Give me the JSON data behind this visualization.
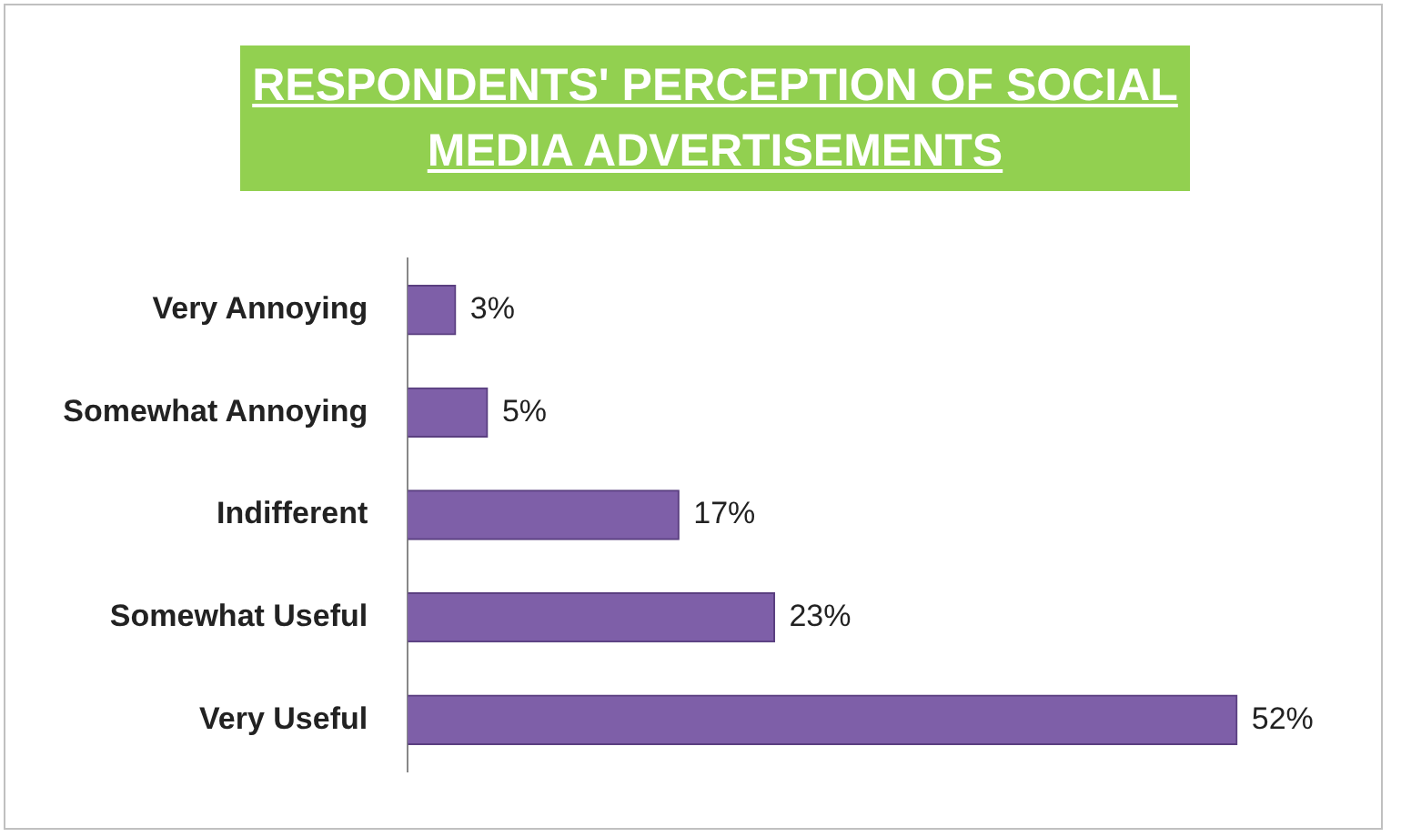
{
  "chart_data": {
    "type": "bar",
    "orientation": "horizontal",
    "title": "RESPONDENTS' PERCEPTION OF SOCIAL MEDIA ADVERTISEMENTS",
    "categories": [
      "Very Annoying",
      "Somewhat Annoying",
      "Indifferent",
      "Somewhat Useful",
      "Very Useful"
    ],
    "values": [
      3,
      5,
      17,
      23,
      52
    ],
    "value_labels": [
      "3%",
      "5%",
      "17%",
      "23%",
      "52%"
    ],
    "color": "#7e5fa8"
  }
}
